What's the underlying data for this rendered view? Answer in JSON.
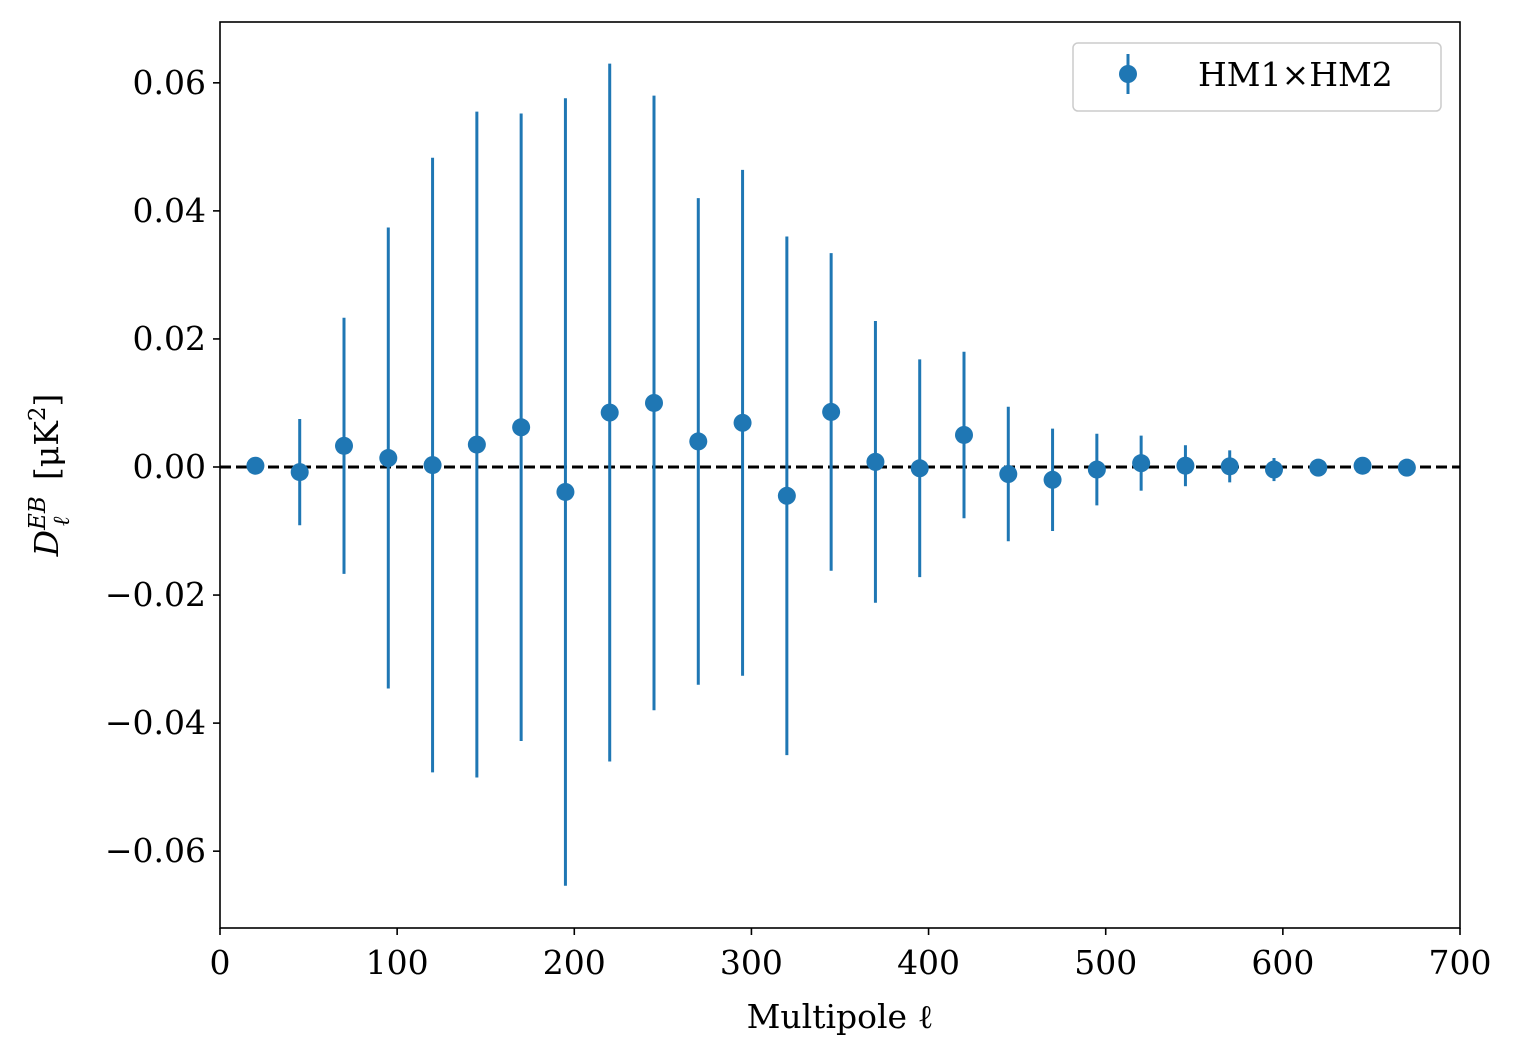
{
  "chart_data": {
    "type": "scatter",
    "title": "",
    "xlabel": "Multipole ℓ",
    "ylabel": {
      "main": "D",
      "subscript": "ℓ",
      "superscript": "EB",
      "unit": "[μK",
      "unit_power": "2",
      "unit_close": "]"
    },
    "xlim": [
      0,
      700
    ],
    "ylim": [
      -0.072,
      0.0695
    ],
    "x_ticks": [
      0,
      100,
      200,
      300,
      400,
      500,
      600,
      700
    ],
    "x_tick_labels": [
      "0",
      "100",
      "200",
      "300",
      "400",
      "500",
      "600",
      "700"
    ],
    "y_ticks": [
      -0.06,
      -0.04,
      -0.02,
      0.0,
      0.02,
      0.04,
      0.06
    ],
    "y_tick_labels": [
      "−0.06",
      "−0.04",
      "−0.02",
      "0.00",
      "0.02",
      "0.04",
      "0.06"
    ],
    "grid": false,
    "legend_position": "top-right",
    "reference_line": {
      "y": 0,
      "style": "dashed",
      "color": "#000000"
    },
    "series": [
      {
        "name": "HM1×HM2",
        "color": "#1f77b4",
        "x": [
          20,
          45,
          70,
          95,
          120,
          145,
          170,
          195,
          220,
          245,
          270,
          295,
          320,
          345,
          370,
          395,
          420,
          445,
          470,
          495,
          520,
          545,
          570,
          595,
          620,
          645,
          670
        ],
        "y": [
          0.0002,
          -0.0008,
          0.0033,
          0.0014,
          0.0003,
          0.0035,
          0.0062,
          -0.0039,
          0.0085,
          0.01,
          0.004,
          0.0069,
          -0.0045,
          0.0086,
          0.0008,
          -0.0002,
          0.005,
          -0.0011,
          -0.002,
          -0.0004,
          0.0006,
          0.0002,
          0.0001,
          -0.0004,
          -0.0001,
          0.0002,
          -0.0001
        ],
        "yerr": [
          0.0,
          0.0083,
          0.02,
          0.036,
          0.048,
          0.052,
          0.049,
          0.0615,
          0.0545,
          0.048,
          0.038,
          0.0395,
          0.0405,
          0.0248,
          0.022,
          0.017,
          0.013,
          0.0105,
          0.008,
          0.0056,
          0.0043,
          0.0032,
          0.0025,
          0.0018,
          0.0003,
          0.0004,
          0.0002
        ]
      }
    ]
  }
}
